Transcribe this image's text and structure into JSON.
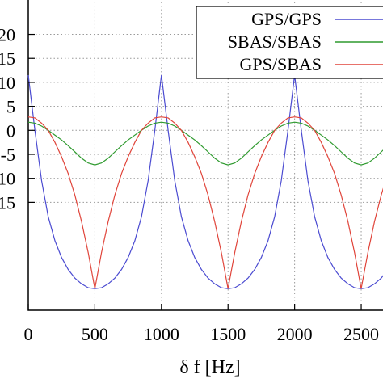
{
  "chart_data": {
    "type": "line",
    "xlabel": "δ f [Hz]",
    "ylabel": "",
    "xlim": [
      0,
      2700
    ],
    "ylim": [
      -37.5,
      27.5
    ],
    "grid": true,
    "legend_position": "top-right",
    "x_ticks": [
      0,
      500,
      1000,
      1500,
      2000,
      2500
    ],
    "x_tick_labels": [
      "0",
      "500",
      "1000",
      "1500",
      "2000",
      "2500"
    ],
    "y_ticks": [
      20,
      15,
      10,
      5,
      0,
      -5,
      -10,
      -15
    ],
    "y_tick_labels": [
      "20",
      "15",
      "10",
      "5",
      "0",
      "-5",
      "-10",
      "-15"
    ],
    "x": [
      0,
      50,
      100,
      150,
      200,
      250,
      300,
      350,
      400,
      450,
      500,
      550,
      600,
      650,
      700,
      750,
      800,
      850,
      900,
      950,
      1000,
      1050,
      1100,
      1150,
      1200,
      1250,
      1300,
      1350,
      1400,
      1450,
      1500,
      1550,
      1600,
      1650,
      1700,
      1750,
      1800,
      1850,
      1900,
      1950,
      2000,
      2050,
      2100,
      2150,
      2200,
      2250,
      2300,
      2350,
      2400,
      2450,
      2500,
      2550,
      2600,
      2650,
      2700
    ],
    "series": [
      {
        "name": "GPS/GPS",
        "color": "#4b4bd1",
        "values": [
          11.5,
          0.0,
          -10.5,
          -18.0,
          -23.0,
          -26.5,
          -29.0,
          -30.8,
          -32.0,
          -32.8,
          -33.0,
          -32.8,
          -32.0,
          -30.8,
          -29.0,
          -26.5,
          -23.0,
          -18.0,
          -10.5,
          0.0,
          11.5,
          0.0,
          -10.5,
          -18.0,
          -23.0,
          -26.5,
          -29.0,
          -30.8,
          -32.0,
          -32.8,
          -33.0,
          -32.8,
          -32.0,
          -30.8,
          -29.0,
          -26.5,
          -23.0,
          -18.0,
          -10.5,
          0.0,
          11.5,
          0.0,
          -10.5,
          -18.0,
          -23.0,
          -26.5,
          -29.0,
          -30.8,
          -32.0,
          -32.8,
          -33.0,
          -32.8,
          -32.0,
          -30.8,
          -29.0
        ]
      },
      {
        "name": "SBAS/SBAS",
        "color": "#2f9a2f",
        "values": [
          1.7,
          1.5,
          0.9,
          0.0,
          -1.0,
          -2.0,
          -3.2,
          -4.5,
          -5.8,
          -6.8,
          -7.2,
          -6.8,
          -5.8,
          -4.5,
          -3.2,
          -2.0,
          -1.0,
          0.0,
          0.9,
          1.5,
          1.7,
          1.5,
          0.9,
          0.0,
          -1.0,
          -2.0,
          -3.2,
          -4.5,
          -5.8,
          -6.8,
          -7.2,
          -6.8,
          -5.8,
          -4.5,
          -3.2,
          -2.0,
          -1.0,
          0.0,
          0.9,
          1.5,
          1.7,
          1.5,
          0.9,
          0.0,
          -1.0,
          -2.0,
          -3.2,
          -4.5,
          -5.8,
          -6.8,
          -7.2,
          -6.8,
          -5.8,
          -4.5,
          -3.2
        ]
      },
      {
        "name": "GPS/SBAS",
        "color": "#e0443a",
        "values": [
          2.8,
          2.6,
          1.5,
          0.0,
          -2.5,
          -5.5,
          -9.0,
          -13.5,
          -19.0,
          -25.5,
          -33.0,
          -25.5,
          -19.0,
          -13.5,
          -9.0,
          -5.5,
          -2.5,
          0.0,
          1.5,
          2.6,
          2.8,
          2.6,
          1.5,
          0.0,
          -2.5,
          -5.5,
          -9.0,
          -13.5,
          -19.0,
          -25.5,
          -33.0,
          -25.5,
          -19.0,
          -13.5,
          -9.0,
          -5.5,
          -2.5,
          0.0,
          1.5,
          2.6,
          2.8,
          2.6,
          1.5,
          0.0,
          -2.5,
          -5.5,
          -9.0,
          -13.5,
          -19.0,
          -25.5,
          -33.0,
          -25.5,
          -19.0,
          -13.5,
          -9.0
        ]
      }
    ]
  }
}
